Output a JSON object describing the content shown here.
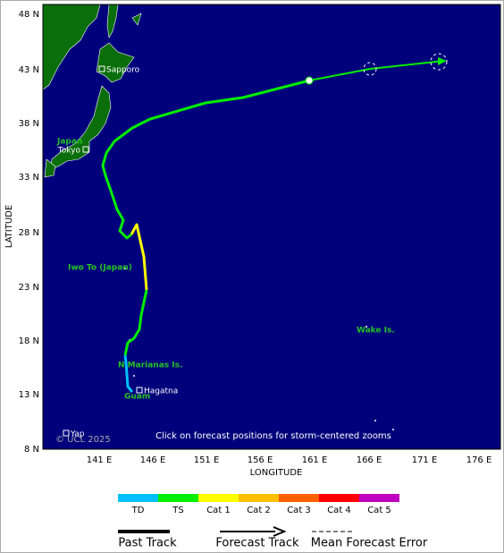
{
  "map": {
    "lat_ticks": [
      "48 N",
      "43 N",
      "38 N",
      "33 N",
      "28 N",
      "23 N",
      "18 N",
      "13 N",
      "8 N"
    ],
    "lon_ticks": [
      "141 E",
      "146 E",
      "151 E",
      "156 E",
      "161 E",
      "166 E",
      "171 E",
      "176 E"
    ],
    "y_axis_label": "LATITUDE",
    "x_axis_label": "LONGITUDE",
    "places": {
      "sapporo": "Sapporo",
      "japan": "Japan",
      "tokyo": "Tokyo",
      "iwo_to": "Iwo To (Japan)",
      "marianas": "N Marianas Is.",
      "guam": "Guam",
      "hagatna": "Hagatna",
      "wake": "Wake Is.",
      "yap": "Yap"
    },
    "copyright": "© UCL 2025",
    "instruction": "Click on forecast positions for storm-centered zooms"
  },
  "legend": {
    "categories": [
      "TD",
      "TS",
      "Cat 1",
      "Cat 2",
      "Cat 3",
      "Cat 4",
      "Cat 5"
    ],
    "colors": [
      "#00bfff",
      "#00ee00",
      "#ffff00",
      "#ffbf00",
      "#ff6000",
      "#ff0000",
      "#c000c0"
    ],
    "past_track": "Past Track",
    "forecast_track": "Forecast Track",
    "mean_forecast_error": "Mean Forecast Error"
  }
}
